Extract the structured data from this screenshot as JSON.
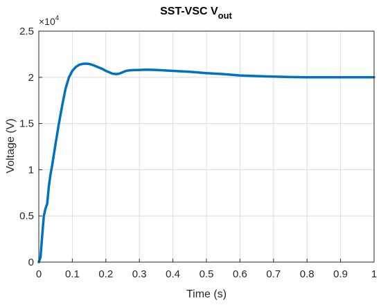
{
  "chart_data": {
    "type": "line",
    "title": {
      "main": "SST-VSC V",
      "subscript": "out"
    },
    "xlabel": "Time (s)",
    "ylabel": "Voltage (V)",
    "y_multiplier": {
      "base": "×10",
      "exponent": "4"
    },
    "xlim": [
      0,
      1
    ],
    "ylim": [
      0,
      2.5
    ],
    "x_ticks": [
      "0",
      "0.1",
      "0.2",
      "0.3",
      "0.4",
      "0.5",
      "0.6",
      "0.7",
      "0.8",
      "0.9",
      "1"
    ],
    "y_ticks": [
      "0",
      "0.5",
      "1",
      "1.5",
      "2",
      "2.5"
    ],
    "grid": true,
    "colors": {
      "line": "#0072BD",
      "grid": "#dcdcdc",
      "axis": "#262626"
    },
    "series": [
      {
        "x": [
          0,
          0.005,
          0.01,
          0.015,
          0.02,
          0.025,
          0.03,
          0.035,
          0.04,
          0.05,
          0.06,
          0.07,
          0.08,
          0.09,
          0.1,
          0.11,
          0.12,
          0.13,
          0.14,
          0.15,
          0.16,
          0.17,
          0.18,
          0.19,
          0.2,
          0.21,
          0.22,
          0.23,
          0.24,
          0.25,
          0.26,
          0.27,
          0.28,
          0.3,
          0.32,
          0.35,
          0.4,
          0.45,
          0.5,
          0.55,
          0.6,
          0.65,
          0.7,
          0.75,
          0.8,
          0.85,
          0.9,
          0.95,
          1.0
        ],
        "values": [
          0,
          0.05,
          0.28,
          0.5,
          0.58,
          0.63,
          0.82,
          0.95,
          1.05,
          1.28,
          1.5,
          1.7,
          1.88,
          2.0,
          2.07,
          2.11,
          2.135,
          2.145,
          2.148,
          2.145,
          2.135,
          2.12,
          2.105,
          2.09,
          2.07,
          2.055,
          2.04,
          2.035,
          2.04,
          2.055,
          2.07,
          2.075,
          2.078,
          2.08,
          2.083,
          2.08,
          2.07,
          2.06,
          2.045,
          2.035,
          2.02,
          2.013,
          2.008,
          2.003,
          2.0,
          2.0,
          2.0,
          2.0,
          2.0
        ]
      }
    ]
  }
}
